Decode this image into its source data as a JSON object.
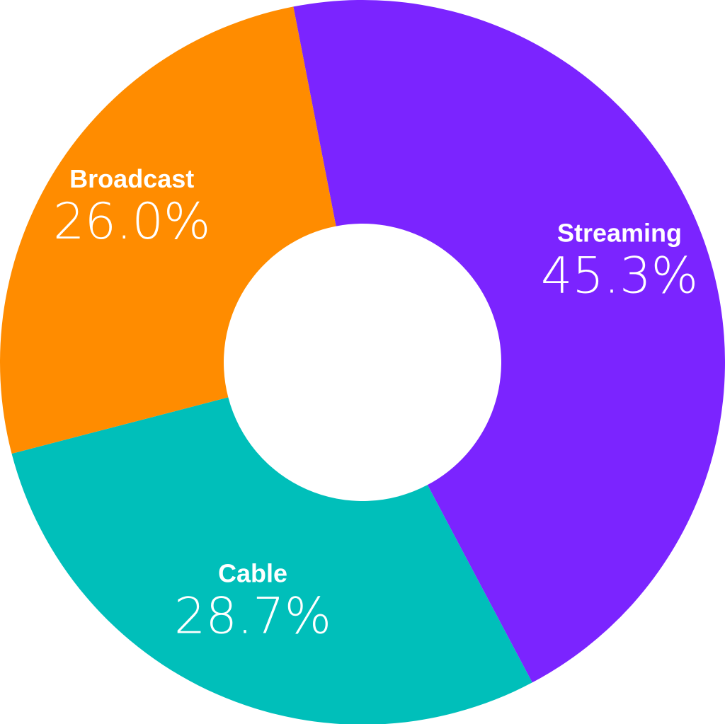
{
  "chart_data": {
    "type": "pie",
    "donut": true,
    "title": "",
    "legend": "none",
    "slices": [
      {
        "name": "Streaming",
        "value": 45.3,
        "display": "45.3%",
        "color": "#7b24ff"
      },
      {
        "name": "Cable",
        "value": 28.7,
        "display": "28.7%",
        "color": "#00bfba"
      },
      {
        "name": "Broadcast",
        "value": 26.0,
        "display": "26.0%",
        "color": "#ff8c00"
      }
    ]
  }
}
